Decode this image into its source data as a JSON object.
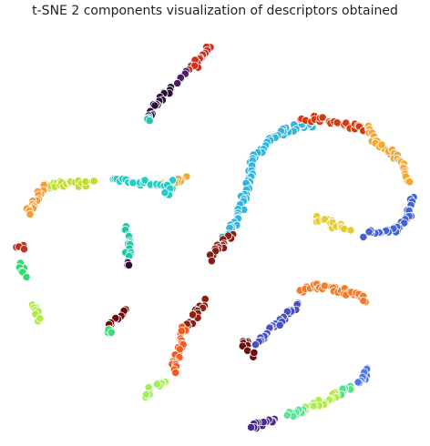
{
  "chart_data": {
    "type": "scatter",
    "title": "t-SNE 2 components visualization of descriptors obtained",
    "xlabel": "",
    "ylabel": "",
    "axes_visible": false,
    "grid": false,
    "legend": "none",
    "xlim": [
      0,
      100
    ],
    "ylim": [
      0,
      100
    ],
    "marker_edge": "#ffffff",
    "clusters": [
      {
        "color": "#d62d1c",
        "path": [
          [
            48.7,
            95.7
          ],
          [
            45.5,
            91.8
          ],
          [
            43.3,
            89.8
          ]
        ]
      },
      {
        "color": "#4b1e62",
        "path": [
          [
            43.3,
            89.8
          ],
          [
            41.4,
            87.5
          ]
        ]
      },
      {
        "color": "#2e0d3a",
        "path": [
          [
            39.6,
            85.9
          ],
          [
            36.5,
            82.5
          ],
          [
            33.5,
            79.2
          ]
        ]
      },
      {
        "color": "#1ec8b4",
        "path": [
          [
            33.9,
            78.0
          ]
        ]
      },
      {
        "color": "#2fb5e0",
        "path": [
          [
            73.5,
            76.9
          ],
          [
            70.0,
            76.5
          ],
          [
            65.6,
            74.5
          ],
          [
            61.5,
            71.2
          ],
          [
            58.9,
            67.8
          ],
          [
            57.7,
            63.5
          ],
          [
            56.7,
            59.2
          ],
          [
            56.0,
            56.1
          ],
          [
            53.9,
            51.4
          ],
          [
            51.0,
            47.8
          ]
        ]
      },
      {
        "color": "#d03b12",
        "path": [
          [
            70.2,
            77.7
          ],
          [
            74.2,
            78.4
          ],
          [
            78.6,
            77.3
          ],
          [
            83.4,
            76.3
          ],
          [
            86.6,
            75.9
          ]
        ]
      },
      {
        "color": "#f4a72c",
        "path": [
          [
            86.6,
            75.9
          ],
          [
            88.4,
            72.2
          ],
          [
            92.1,
            70.0
          ],
          [
            95.1,
            67.3
          ],
          [
            96.5,
            62.9
          ]
        ]
      },
      {
        "color": "#4263d0",
        "path": [
          [
            96.8,
            59.4
          ],
          [
            96.3,
            54.3
          ],
          [
            93.6,
            51.3
          ],
          [
            89.6,
            50.8
          ],
          [
            86.1,
            50.2
          ]
        ]
      },
      {
        "color": "#e5cc32",
        "path": [
          [
            74.0,
            54.1
          ],
          [
            78.2,
            52.4
          ],
          [
            82.0,
            51.4
          ]
        ]
      },
      {
        "color": "#8d1a10",
        "path": [
          [
            53.4,
            49.8
          ],
          [
            50.0,
            46.2
          ],
          [
            48.5,
            44.4
          ]
        ]
      },
      {
        "color": "#f3a834",
        "path": [
          [
            42.6,
            63.7
          ],
          [
            39.1,
            62.8
          ],
          [
            37.5,
            62.0
          ]
        ]
      },
      {
        "color": "#23cdc3",
        "path": [
          [
            25.6,
            63.1
          ],
          [
            32.5,
            62.7
          ],
          [
            38.9,
            62.5
          ],
          [
            38.4,
            59.8
          ]
        ]
      },
      {
        "color": "#c0dc32",
        "path": [
          [
            8.7,
            61.7
          ],
          [
            13.6,
            62.4
          ],
          [
            20.3,
            62.4
          ]
        ]
      },
      {
        "color": "#f49c3c",
        "path": [
          [
            8.9,
            61.5
          ],
          [
            6.7,
            58.6
          ],
          [
            4.9,
            55.1
          ]
        ]
      },
      {
        "color": "#1fc8a6",
        "path": [
          [
            28.8,
            51.5
          ],
          [
            28.9,
            47.3
          ],
          [
            29.0,
            44.4
          ]
        ]
      },
      {
        "color": "#2a0a3d",
        "path": [
          [
            28.9,
            43.1
          ]
        ]
      },
      {
        "color": "#c0301c",
        "path": [
          [
            2.9,
            47.5
          ],
          [
            3.6,
            45.8
          ]
        ]
      },
      {
        "color": "#2fdc6a",
        "path": [
          [
            3.2,
            42.8
          ],
          [
            4.2,
            39.7
          ]
        ]
      },
      {
        "color": "#b3e84a",
        "path": [
          [
            6.4,
            33.0
          ],
          [
            7.9,
            29.2
          ]
        ]
      },
      {
        "color": "#6b0c0c",
        "path": [
          [
            28.4,
            32.2
          ],
          [
            25.9,
            29.3
          ],
          [
            24.5,
            27.5
          ]
        ]
      },
      {
        "color": "#3cdc78",
        "path": [
          [
            23.8,
            26.3
          ],
          [
            25.0,
            26.5
          ]
        ]
      },
      {
        "color": "#8f1d10",
        "path": [
          [
            47.4,
            33.9
          ],
          [
            45.3,
            30.9
          ],
          [
            43.1,
            27.9
          ]
        ]
      },
      {
        "color": "#f35a1c",
        "path": [
          [
            42.3,
            27.5
          ],
          [
            41.4,
            22.6
          ],
          [
            40.4,
            18.8
          ],
          [
            39.6,
            16.3
          ]
        ]
      },
      {
        "color": "#a3ef58",
        "path": [
          [
            37.5,
            14.9
          ],
          [
            34.5,
            12.2
          ],
          [
            32.9,
            10.8
          ]
        ]
      },
      {
        "color": "#f57a28",
        "path": [
          [
            69.6,
            36.7
          ],
          [
            74.3,
            37.3
          ],
          [
            79.6,
            36.5
          ],
          [
            83.6,
            35.5
          ],
          [
            85.9,
            33.8
          ]
        ]
      },
      {
        "color": "#4650c3",
        "path": [
          [
            69.2,
            33.0
          ],
          [
            67.5,
            31.0
          ],
          [
            64.6,
            27.7
          ],
          [
            61.7,
            25.7
          ],
          [
            59.2,
            23.4
          ]
        ]
      },
      {
        "color": "#6b0e0e",
        "path": [
          [
            57.3,
            24.5
          ],
          [
            57.0,
            22.5
          ],
          [
            58.9,
            20.6
          ]
        ]
      },
      {
        "color": "#4d78e8",
        "path": [
          [
            86.3,
            17.4
          ],
          [
            85.1,
            15.0
          ],
          [
            83.5,
            13.8
          ]
        ]
      },
      {
        "color": "#52e28a",
        "path": [
          [
            82.3,
            13.4
          ],
          [
            79.6,
            11.5
          ]
        ]
      },
      {
        "color": "#b0ed48",
        "path": [
          [
            79.6,
            11.5
          ],
          [
            75.0,
            9.2
          ],
          [
            71.3,
            7.6
          ]
        ]
      },
      {
        "color": "#5fe299",
        "path": [
          [
            71.3,
            7.6
          ],
          [
            67.3,
            5.7
          ]
        ]
      },
      {
        "color": "#4b2a8b",
        "path": [
          [
            64.4,
            5.1
          ],
          [
            61.3,
            4.0
          ],
          [
            57.8,
            3.5
          ]
        ]
      }
    ]
  }
}
